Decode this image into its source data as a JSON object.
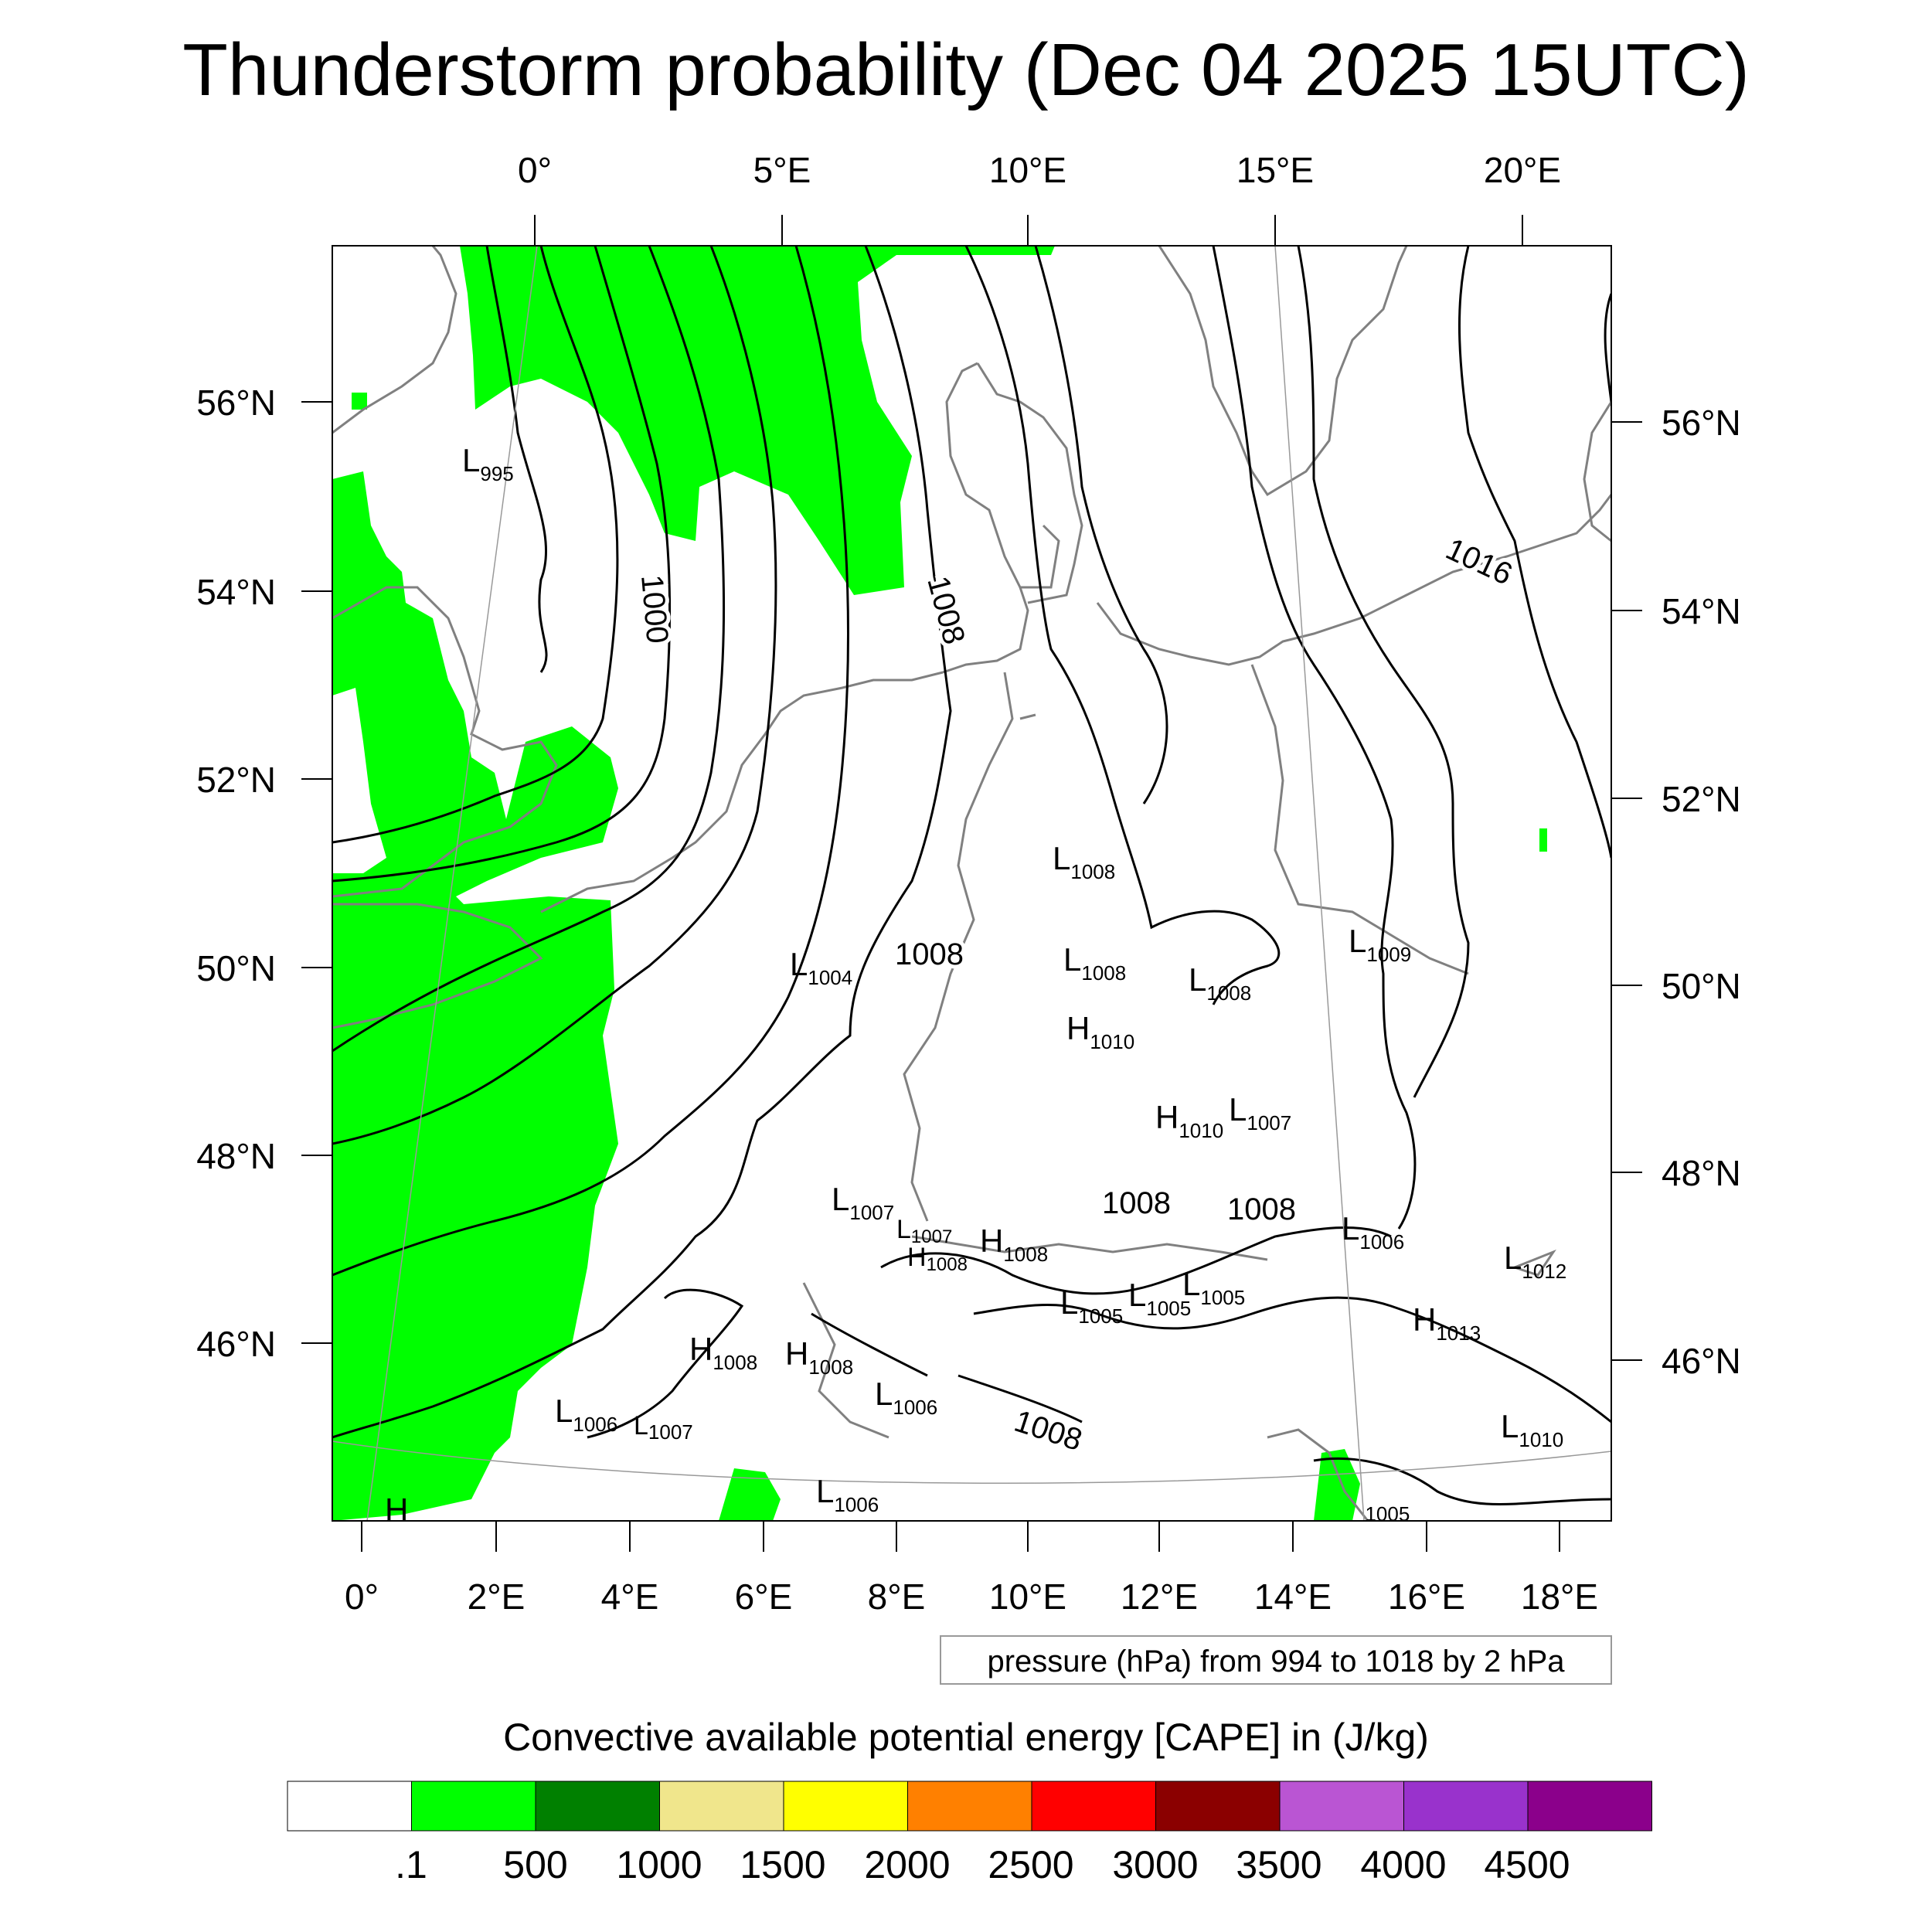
{
  "title": "Thunderstorm probability (Dec 04 2025 15UTC)",
  "map": {
    "top_lon_labels": [
      "0°",
      "5°E",
      "10°E",
      "15°E",
      "20°E"
    ],
    "bottom_lon_labels": [
      "0°",
      "2°E",
      "4°E",
      "6°E",
      "8°E",
      "10°E",
      "12°E",
      "14°E",
      "16°E",
      "18°E"
    ],
    "left_lat_labels": [
      "56°N",
      "54°N",
      "52°N",
      "50°N",
      "48°N",
      "46°N"
    ],
    "right_lat_labels": [
      "56°N",
      "54°N",
      "52°N",
      "50°N",
      "48°N",
      "46°N"
    ],
    "isobar_labels": [
      "1000",
      "1008",
      "1016",
      "1008",
      "1008",
      "1008",
      "1008"
    ],
    "pressure_centers": [
      {
        "type": "L",
        "value": "995"
      },
      {
        "type": "L",
        "value": "1008"
      },
      {
        "type": "L",
        "value": "1009"
      },
      {
        "type": "L",
        "value": "1004"
      },
      {
        "type": "L",
        "value": "1008"
      },
      {
        "type": "L",
        "value": "1008"
      },
      {
        "type": "H",
        "value": "1010"
      },
      {
        "type": "H",
        "value": "1010"
      },
      {
        "type": "L",
        "value": "1007"
      },
      {
        "type": "L",
        "value": "1007"
      },
      {
        "type": "L",
        "value": "1007"
      },
      {
        "type": "H",
        "value": "1008"
      },
      {
        "type": "H",
        "value": "1008"
      },
      {
        "type": "L",
        "value": "1006"
      },
      {
        "type": "L",
        "value": "1012"
      },
      {
        "type": "L",
        "value": "1005"
      },
      {
        "type": "L",
        "value": "1005"
      },
      {
        "type": "L",
        "value": "1005"
      },
      {
        "type": "H",
        "value": "1013"
      },
      {
        "type": "H",
        "value": "1008"
      },
      {
        "type": "H",
        "value": "1008"
      },
      {
        "type": "L",
        "value": "1006"
      },
      {
        "type": "L",
        "value": "1006"
      },
      {
        "type": "L",
        "value": "1007"
      },
      {
        "type": "L",
        "value": "1010"
      },
      {
        "type": "L",
        "value": "1006"
      },
      {
        "type": "L",
        "value": "1005"
      },
      {
        "type": "H",
        "value": ""
      }
    ],
    "pressure_note": "pressure (hPa) from 994 to 1018 by 2 hPa"
  },
  "colorbar": {
    "title": "Convective available potential energy [CAPE] in (J/kg)",
    "colors": [
      "#ffffff",
      "#00ff00",
      "#008000",
      "#f0e68c",
      "#ffff00",
      "#ff8000",
      "#ff0000",
      "#8b0000",
      "#ba55d3",
      "#9932cc",
      "#8b008b"
    ],
    "tick_labels": [
      ".1",
      "500",
      "1000",
      "1500",
      "2000",
      "2500",
      "3000",
      "3500",
      "4000",
      "4500"
    ]
  },
  "colors": {
    "cape_fill": "#00ff00",
    "coast": "#808080",
    "isobar": "#000000"
  }
}
